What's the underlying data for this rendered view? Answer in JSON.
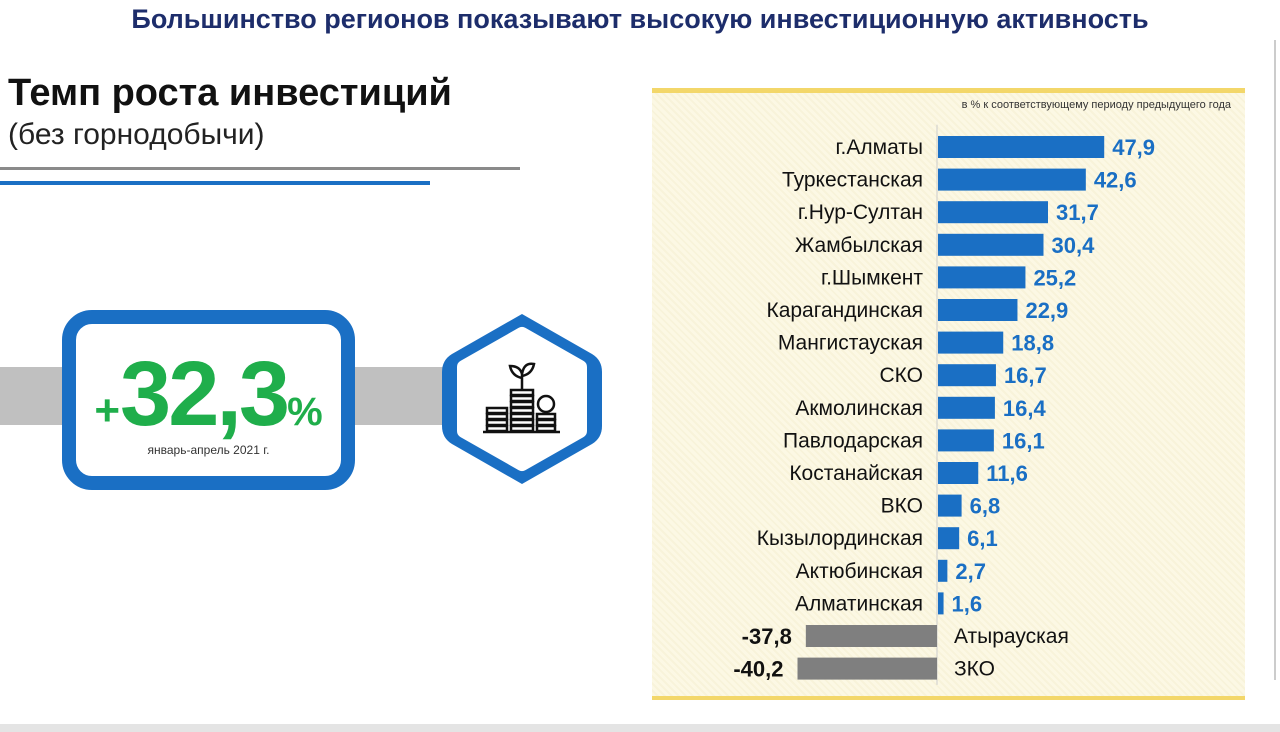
{
  "header": {
    "title": "Большинство регионов показывают высокую инвестиционную активность"
  },
  "left": {
    "title": "Темп роста инвестиций",
    "subtitle": "(без горнодобычи)",
    "kpi_sign": "+",
    "kpi_value": "32,3",
    "kpi_unit": "%",
    "kpi_period": "январь-апрель 2021 г."
  },
  "icon": "money-growth-icon",
  "colors": {
    "positive": "#1a6fc4",
    "negative": "#7f7f7f",
    "kpi": "#1fae4b",
    "title": "#1d2d6b"
  },
  "chart_data": {
    "type": "bar",
    "orientation": "horizontal",
    "note": "в % к соответствующему периоду предыдущего года",
    "categories": [
      "г.Алматы",
      "Туркестанская",
      "г.Нур-Султан",
      "Жамбылская",
      "г.Шымкент",
      "Карагандинская",
      "Мангистауская",
      "СКО",
      "Акмолинская",
      "Павлодарская",
      "Костанайская",
      "ВКО",
      "Кызылординская",
      "Актюбинская",
      "Алматинская",
      "Атырауская",
      "ЗКО"
    ],
    "values": [
      47.9,
      42.6,
      31.7,
      30.4,
      25.2,
      22.9,
      18.8,
      16.7,
      16.4,
      16.1,
      11.6,
      6.8,
      6.1,
      2.7,
      1.6,
      -37.8,
      -40.2
    ],
    "labels": [
      "47,9",
      "42,6",
      "31,7",
      "30,4",
      "25,2",
      "22,9",
      "18,8",
      "16,7",
      "16,4",
      "16,1",
      "11,6",
      "6,8",
      "6,1",
      "2,7",
      "1,6",
      "-37,8",
      "-40,2"
    ]
  }
}
